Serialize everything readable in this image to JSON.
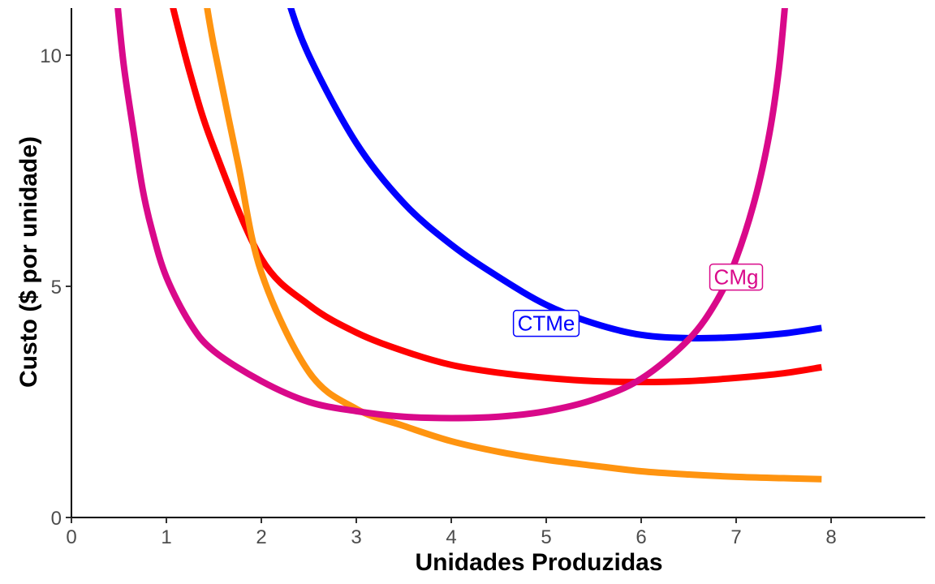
{
  "chart_data": {
    "type": "line",
    "xlabel": "Unidades Produzidas",
    "ylabel": "Custo ($ por unidade)",
    "xlim": [
      0,
      9
    ],
    "ylim": [
      0,
      11
    ],
    "x_ticks": [
      0,
      1,
      2,
      3,
      4,
      5,
      6,
      7,
      8
    ],
    "y_ticks": [
      0,
      5,
      10
    ],
    "grid": false,
    "legend": "none",
    "series": [
      {
        "color": "#0000FF",
        "x": [
          2.0,
          2.25,
          2.5,
          3.0,
          3.5,
          4.0,
          4.5,
          5.0,
          5.5,
          6.0,
          6.5,
          7.0,
          7.5,
          7.9
        ],
        "y": [
          13.1,
          11.4,
          10.0,
          8.1,
          6.8,
          5.9,
          5.2,
          4.6,
          4.2,
          3.95,
          3.88,
          3.9,
          3.98,
          4.1
        ]
      },
      {
        "color": "#FF0000",
        "x": [
          1.0,
          1.25,
          1.5,
          2.0,
          2.5,
          3.0,
          3.5,
          4.0,
          4.5,
          5.0,
          5.5,
          6.0,
          6.5,
          7.0,
          7.5,
          7.9
        ],
        "y": [
          11.6,
          9.6,
          8.0,
          5.6,
          4.6,
          4.0,
          3.6,
          3.3,
          3.13,
          3.02,
          2.95,
          2.93,
          2.95,
          3.02,
          3.12,
          3.25
        ]
      },
      {
        "color": "#FF9410",
        "x": [
          1.4,
          1.5,
          1.75,
          2.0,
          2.5,
          3.0,
          3.5,
          4.0,
          4.5,
          5.0,
          5.5,
          6.0,
          6.5,
          7.0,
          7.5,
          7.9
        ],
        "y": [
          11.4,
          10.2,
          7.7,
          5.3,
          3.15,
          2.35,
          1.98,
          1.65,
          1.42,
          1.25,
          1.12,
          1.0,
          0.93,
          0.88,
          0.85,
          0.83
        ]
      },
      {
        "color": "#D9098A",
        "x": [
          0.48,
          0.55,
          0.65,
          0.75,
          0.85,
          1.0,
          1.25,
          1.5,
          2.0,
          2.5,
          3.0,
          3.5,
          4.0,
          4.5,
          5.0,
          5.5,
          6.0,
          6.5,
          6.8,
          7.0,
          7.2,
          7.35,
          7.45,
          7.52
        ],
        "y": [
          11.2,
          9.8,
          8.4,
          7.1,
          6.2,
          5.2,
          4.2,
          3.6,
          2.95,
          2.5,
          2.3,
          2.18,
          2.15,
          2.18,
          2.3,
          2.55,
          3.0,
          3.85,
          4.7,
          5.6,
          6.9,
          8.3,
          9.7,
          11.2
        ]
      }
    ],
    "labels": [
      {
        "text": "CTMe",
        "x": 5.0,
        "y": 4.2,
        "color": "#0000FF"
      },
      {
        "text": "CMg",
        "x": 7.0,
        "y": 5.2,
        "color": "#D9098A"
      }
    ]
  }
}
